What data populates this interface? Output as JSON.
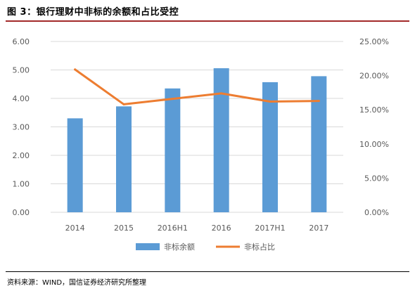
{
  "title": "图 3：银行理财中非标的余额和占比受控",
  "source": "资料来源：WIND，国信证券经济研究所整理",
  "chart_data": {
    "type": "bar",
    "categories": [
      "2014",
      "2015",
      "2016H1",
      "2016",
      "2017H1",
      "2017"
    ],
    "series": [
      {
        "name": "非标余额",
        "type": "bar",
        "axis": "left",
        "color": "#5b9bd5",
        "values": [
          3.3,
          3.72,
          4.35,
          5.06,
          4.57,
          4.78
        ]
      },
      {
        "name": "非标占比",
        "type": "line",
        "axis": "right",
        "color": "#ed7d31",
        "values": [
          20.9,
          15.8,
          16.6,
          17.4,
          16.2,
          16.3
        ]
      }
    ],
    "y_left": {
      "min": 0,
      "max": 6,
      "ticks": [
        "0.00",
        "1.00",
        "2.00",
        "3.00",
        "4.00",
        "5.00",
        "6.00"
      ]
    },
    "y_right": {
      "min": 0,
      "max": 25,
      "ticks": [
        "0.00%",
        "5.00%",
        "10.00%",
        "15.00%",
        "20.00%",
        "25.00%"
      ]
    },
    "grid": true,
    "legend_position": "bottom"
  }
}
